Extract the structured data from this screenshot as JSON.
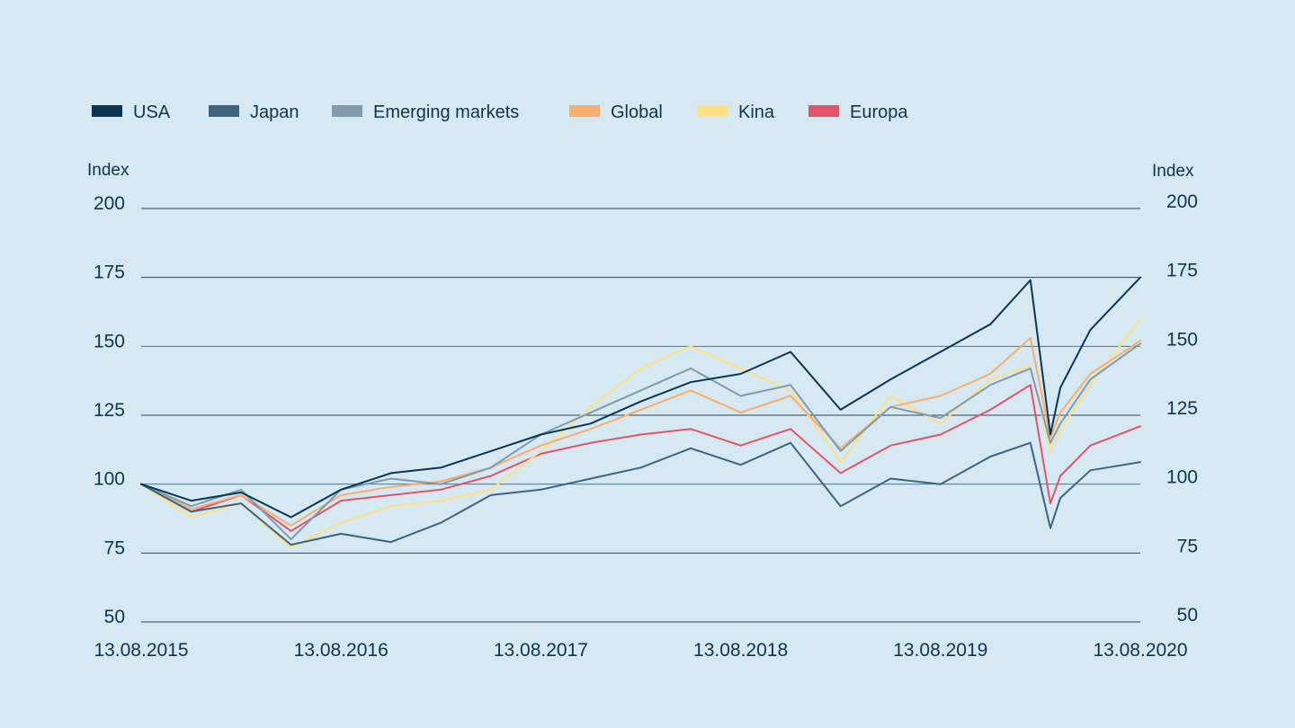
{
  "chart_data": {
    "type": "line",
    "title": "",
    "xlabel": "",
    "ylabel": "Index",
    "ylabel_right": "Index",
    "ylim": [
      50,
      200
    ],
    "yticks": [
      50,
      75,
      100,
      125,
      150,
      175,
      200
    ],
    "grid": true,
    "legend_position": "top-left",
    "x_ticks": [
      "13.08.2015",
      "13.08.2016",
      "13.08.2017",
      "13.08.2018",
      "13.08.2019",
      "13.08.2020"
    ],
    "x": [
      0,
      0.25,
      0.5,
      0.75,
      1.0,
      1.25,
      1.5,
      1.75,
      2.0,
      2.25,
      2.5,
      2.75,
      3.0,
      3.25,
      3.5,
      3.75,
      4.0,
      4.25,
      4.45,
      4.55,
      4.6,
      4.75,
      5.0
    ],
    "x_units": "years since 13.08.2015",
    "series": [
      {
        "name": "USA",
        "color": "#0b3552",
        "values": [
          100,
          94,
          97,
          88,
          98,
          104,
          106,
          112,
          118,
          122,
          130,
          137,
          140,
          148,
          127,
          138,
          148,
          158,
          174,
          118,
          135,
          156,
          175
        ]
      },
      {
        "name": "Japan",
        "color": "#3f6480",
        "values": [
          100,
          90,
          93,
          78,
          82,
          79,
          86,
          96,
          98,
          102,
          106,
          113,
          107,
          115,
          92,
          102,
          100,
          110,
          115,
          84,
          95,
          105,
          108
        ]
      },
      {
        "name": "Emerging markets",
        "color": "#7f9cae",
        "values": [
          100,
          92,
          98,
          80,
          98,
          102,
          100,
          106,
          118,
          126,
          134,
          142,
          132,
          136,
          112,
          128,
          124,
          136,
          142,
          115,
          122,
          138,
          151
        ]
      },
      {
        "name": "Global",
        "color": "#f9ad6e",
        "values": [
          100,
          91,
          96,
          85,
          96,
          99,
          101,
          106,
          114,
          120,
          127,
          134,
          126,
          132,
          113,
          128,
          132,
          140,
          153,
          117,
          126,
          140,
          152
        ]
      },
      {
        "name": "Kina",
        "color": "#ffe083",
        "values": [
          100,
          88,
          93,
          77,
          86,
          92,
          94,
          98,
          112,
          128,
          142,
          150,
          142,
          134,
          108,
          132,
          122,
          138,
          143,
          112,
          120,
          136,
          160
        ]
      },
      {
        "name": "Europa",
        "color": "#e3536a",
        "values": [
          100,
          90,
          96,
          83,
          94,
          96,
          98,
          103,
          111,
          115,
          118,
          120,
          114,
          120,
          104,
          114,
          118,
          127,
          136,
          93,
          103,
          114,
          121
        ]
      }
    ]
  }
}
